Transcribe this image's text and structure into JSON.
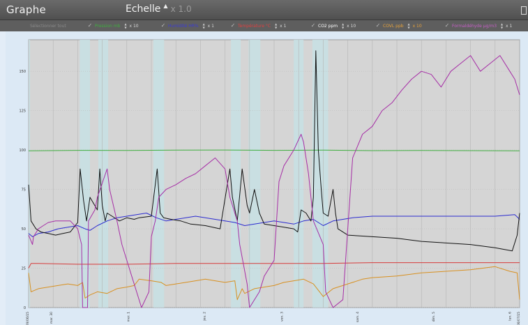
{
  "header": {
    "title": "Graphe",
    "scale_label": "Echelle",
    "scale_arrow": "▲",
    "scale_value": "x 1.0"
  },
  "series_toggles": [
    {
      "label": "Sélectionner tout",
      "multiplier": "",
      "color": "#8a8a8a",
      "checked": false
    },
    {
      "label": "Pression mb",
      "multiplier": "x 10",
      "color": "#3fae3f",
      "checked": true
    },
    {
      "label": "Humidité HR%",
      "multiplier": "x 1",
      "color": "#3b3bd9",
      "checked": true
    },
    {
      "label": "Température °C",
      "multiplier": "x 1",
      "color": "#e04040",
      "checked": true
    },
    {
      "label": "CO2 ppm",
      "multiplier": "x 10",
      "color": "#ffffff",
      "checked": true
    },
    {
      "label": "COVL ppb",
      "multiplier": "x 10",
      "color": "#e6a23c",
      "checked": true
    },
    {
      "label": "Formaldéhyde µg/m3",
      "multiplier": "x 1",
      "color": "#c65fc6",
      "checked": true
    }
  ],
  "chart_data": {
    "type": "line",
    "xlabel": "",
    "ylabel": "",
    "ylim": [
      0,
      170
    ],
    "yticks": [
      0,
      25,
      50,
      75,
      100,
      125,
      150
    ],
    "xlim": [
      0,
      1000
    ],
    "xtick_labels": [
      "29/06/15",
      "mar. 30",
      "mer. 1",
      "jeu. 2",
      "ven. 3",
      "sam. 4",
      "dim. 5",
      "lun. 6",
      "06/07/15"
    ],
    "xtick_positions": [
      0,
      48,
      205,
      360,
      518,
      672,
      827,
      982,
      1000
    ],
    "grid": true,
    "shaded_bands": [
      [
        0,
        3
      ],
      [
        104,
        125
      ],
      [
        142,
        162
      ],
      [
        254,
        276
      ],
      [
        412,
        432
      ],
      [
        448,
        472
      ],
      [
        540,
        560
      ],
      [
        578,
        610
      ]
    ],
    "series": [
      {
        "name": "Pression mb",
        "color": "#3fae3f",
        "x": [
          0,
          100,
          200,
          300,
          400,
          500,
          600,
          700,
          800,
          900,
          1000
        ],
        "y": [
          99.5,
          99.8,
          99.7,
          99.9,
          100,
          99.8,
          99.9,
          99.6,
          99.7,
          99.6,
          99.5
        ]
      },
      {
        "name": "Humidité HR%",
        "color": "#2b2bd0",
        "x": [
          0,
          8,
          20,
          40,
          60,
          80,
          100,
          115,
          125,
          140,
          160,
          180,
          200,
          220,
          240,
          260,
          280,
          300,
          320,
          340,
          360,
          380,
          400,
          420,
          440,
          460,
          480,
          500,
          520,
          540,
          560,
          580,
          600,
          620,
          640,
          660,
          700,
          750,
          800,
          850,
          900,
          950,
          990,
          1000
        ],
        "y": [
          47,
          45,
          47,
          48,
          50,
          51,
          52,
          50,
          49,
          52,
          55,
          57,
          58,
          59,
          60,
          57,
          55,
          56,
          57,
          58,
          57,
          56,
          55,
          54,
          52,
          53,
          54,
          55,
          54,
          53,
          55,
          56,
          52,
          55,
          56,
          57,
          58,
          58,
          58,
          58,
          58,
          58,
          59,
          56
        ]
      },
      {
        "name": "Température °C",
        "color": "#d63a3a",
        "x": [
          0,
          5,
          20,
          100,
          200,
          300,
          400,
          500,
          600,
          700,
          800,
          900,
          1000
        ],
        "y": [
          25,
          28,
          28,
          27.5,
          27.5,
          28,
          28,
          28,
          28,
          28.5,
          28.5,
          28.5,
          28.5
        ]
      },
      {
        "name": "CO2 ppm",
        "color": "#111111",
        "x": [
          0,
          5,
          15,
          25,
          40,
          55,
          70,
          85,
          100,
          105,
          112,
          118,
          125,
          140,
          145,
          150,
          156,
          160,
          170,
          185,
          200,
          215,
          225,
          250,
          262,
          268,
          275,
          290,
          310,
          330,
          360,
          390,
          410,
          415,
          425,
          435,
          445,
          450,
          460,
          470,
          480,
          500,
          520,
          540,
          548,
          555,
          565,
          575,
          580,
          585,
          590,
          596,
          600,
          610,
          620,
          625,
          630,
          650,
          700,
          750,
          800,
          850,
          900,
          950,
          985,
          995,
          1000
        ],
        "y": [
          78,
          55,
          50,
          48,
          47,
          46,
          47,
          48,
          54,
          88,
          68,
          55,
          70,
          62,
          88,
          65,
          55,
          60,
          58,
          55,
          57,
          56,
          57,
          58,
          88,
          60,
          57,
          56,
          55,
          53,
          52,
          50,
          88,
          70,
          55,
          88,
          65,
          60,
          75,
          60,
          53,
          52,
          51,
          50,
          48,
          62,
          60,
          55,
          70,
          163,
          100,
          75,
          60,
          58,
          75,
          60,
          50,
          46,
          45,
          44,
          42,
          41,
          40,
          38,
          36,
          46,
          60
        ]
      },
      {
        "name": "COVL ppb",
        "color": "#d89020",
        "x": [
          0,
          5,
          20,
          40,
          60,
          80,
          100,
          110,
          115,
          125,
          140,
          160,
          180,
          200,
          215,
          225,
          250,
          270,
          280,
          300,
          320,
          340,
          360,
          380,
          400,
          420,
          425,
          435,
          440,
          460,
          480,
          500,
          520,
          540,
          560,
          580,
          600,
          620,
          640,
          660,
          680,
          700,
          750,
          800,
          850,
          900,
          950,
          980,
          995,
          1000
        ],
        "y": [
          22,
          10,
          12,
          13,
          14,
          15,
          14,
          16,
          6,
          8,
          10,
          9,
          12,
          13,
          14,
          18,
          17,
          16,
          14,
          15,
          16,
          17,
          18,
          17,
          16,
          17,
          5,
          12,
          9,
          12,
          13,
          14,
          16,
          17,
          18,
          15,
          7,
          12,
          14,
          16,
          18,
          19,
          20,
          22,
          23,
          24,
          26,
          23,
          22,
          5
        ]
      },
      {
        "name": "Formaldéhyde µg/m3",
        "color": "#a62ea6",
        "x": [
          0,
          8,
          10,
          20,
          30,
          40,
          55,
          70,
          85,
          100,
          108,
          110,
          120,
          122,
          135,
          140,
          160,
          165,
          180,
          190,
          210,
          230,
          245,
          250,
          258,
          265,
          280,
          300,
          320,
          340,
          360,
          380,
          400,
          410,
          425,
          430,
          445,
          450,
          470,
          480,
          500,
          510,
          520,
          540,
          555,
          560,
          570,
          575,
          580,
          600,
          605,
          620,
          640,
          660,
          680,
          700,
          720,
          740,
          760,
          780,
          800,
          820,
          840,
          860,
          880,
          900,
          920,
          940,
          960,
          980,
          990,
          1000
        ],
        "y": [
          46,
          40,
          45,
          50,
          52,
          54,
          55,
          55,
          55,
          50,
          40,
          0,
          0,
          55,
          62,
          70,
          88,
          75,
          55,
          40,
          20,
          0,
          10,
          45,
          55,
          70,
          75,
          78,
          82,
          85,
          90,
          95,
          88,
          70,
          55,
          40,
          15,
          0,
          10,
          20,
          30,
          80,
          90,
          100,
          110,
          105,
          85,
          70,
          55,
          40,
          10,
          0,
          5,
          95,
          110,
          115,
          125,
          130,
          138,
          145,
          150,
          148,
          140,
          150,
          155,
          160,
          150,
          155,
          160,
          150,
          145,
          135
        ]
      }
    ]
  }
}
